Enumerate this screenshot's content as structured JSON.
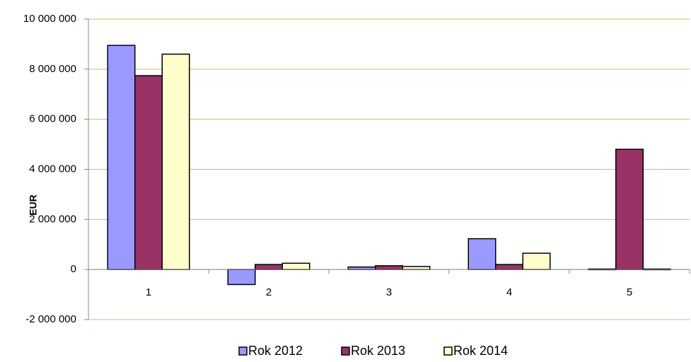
{
  "chart_data": {
    "type": "bar",
    "y_label": "EUR",
    "categories": [
      "1",
      "2",
      "3",
      "4",
      "5"
    ],
    "series": [
      {
        "name": "Rok 2012",
        "color": "#9999ff",
        "values": [
          8950000,
          -600000,
          100000,
          1230000,
          20000
        ]
      },
      {
        "name": "Rok 2013",
        "color": "#993366",
        "values": [
          7740000,
          200000,
          150000,
          200000,
          4800000
        ]
      },
      {
        "name": "Rok 2014",
        "color": "#ffffcc",
        "values": [
          8600000,
          250000,
          120000,
          650000,
          20000
        ]
      }
    ],
    "ylim": [
      -2000000,
      10000000
    ],
    "yticks": [
      {
        "value": -2000000,
        "label": "-2 000 000"
      },
      0,
      {
        "value": 2000000,
        "label": "2 000 000"
      },
      {
        "value": 4000000,
        "label": "4 000 000"
      },
      {
        "value": 6000000,
        "label": "6 000 000"
      },
      {
        "value": 8000000,
        "label": "8 000 000"
      },
      {
        "value": 10000000,
        "label": "10 000 000"
      }
    ],
    "grid": true,
    "grid_color": "#e0b850",
    "legend": "bottom"
  }
}
